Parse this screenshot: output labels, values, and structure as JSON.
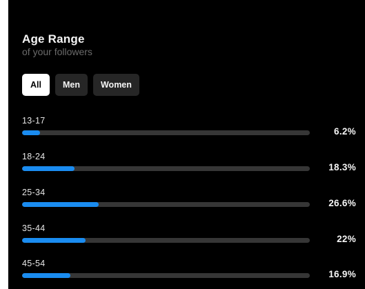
{
  "card": {
    "title": "Age Range",
    "subtitle": "of your followers"
  },
  "filters": [
    {
      "label": "All",
      "selected": true
    },
    {
      "label": "Men",
      "selected": false
    },
    {
      "label": "Women",
      "selected": false
    }
  ],
  "colors": {
    "background": "#000000",
    "bar_fill": "#1a8cf0",
    "bar_track": "#363636"
  },
  "age_ranges": [
    {
      "label": "13-17",
      "percent_text": "6.2%",
      "fill_fraction": 0.062
    },
    {
      "label": "18-24",
      "percent_text": "18.3%",
      "fill_fraction": 0.183
    },
    {
      "label": "25-34",
      "percent_text": "26.6%",
      "fill_fraction": 0.266
    },
    {
      "label": "35-44",
      "percent_text": "22%",
      "fill_fraction": 0.22
    },
    {
      "label": "45-54",
      "percent_text": "16.9%",
      "fill_fraction": 0.169
    }
  ]
}
